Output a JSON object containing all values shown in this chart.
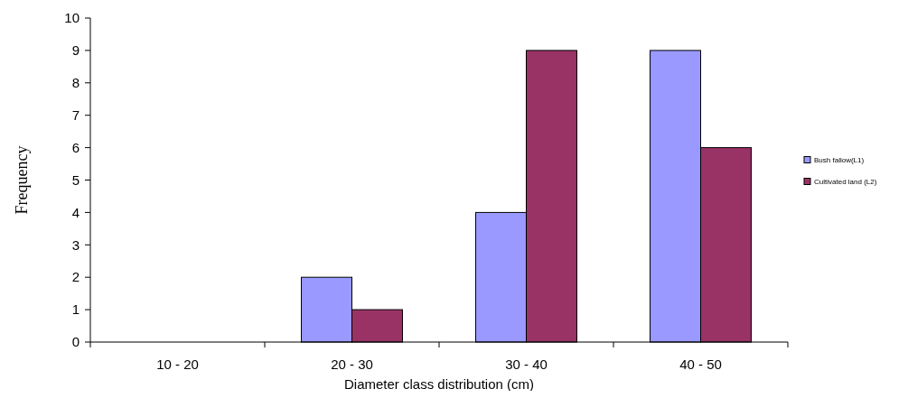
{
  "chart_data": {
    "type": "bar",
    "xlabel": "Diameter class distribution (cm)",
    "ylabel": "Frequency",
    "categories": [
      "10 - 20",
      "20 - 30",
      "30  - 40",
      "40 - 50"
    ],
    "series": [
      {
        "name": "Bush fallow(L1)",
        "color": "#9999ff",
        "values": [
          0,
          2,
          4,
          9
        ]
      },
      {
        "name": "Cultivated  land  (L2)",
        "color": "#993366",
        "values": [
          0,
          1,
          9,
          6
        ]
      }
    ],
    "ylim": [
      0,
      10
    ],
    "yticks": [
      0,
      1,
      2,
      3,
      4,
      5,
      6,
      7,
      8,
      9,
      10
    ],
    "grid": false,
    "legend": "right"
  }
}
